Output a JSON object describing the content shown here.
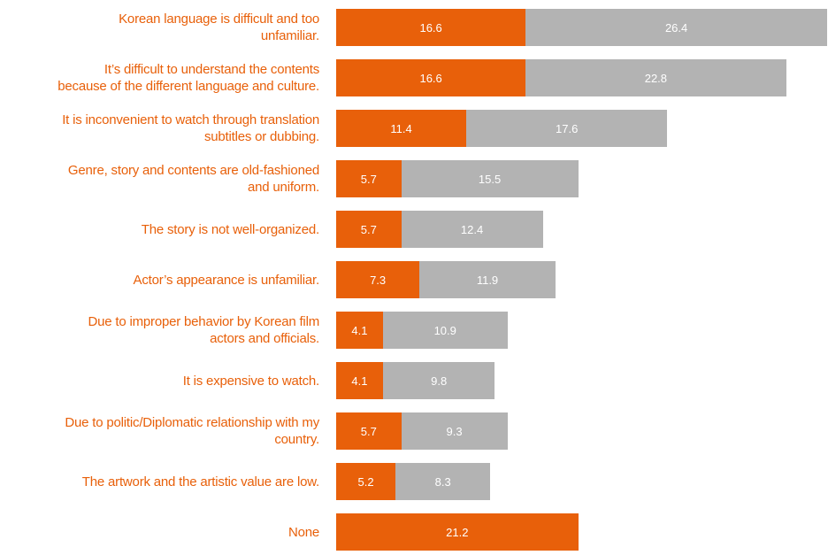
{
  "chart_data": {
    "type": "stacked_barh",
    "categories": [
      "Korean language is difficult and too\nunfamiliar.",
      "It’s difficult to understand the contents\nbecause of the different language and culture.",
      "It is inconvenient to watch through translation\nsubtitles or dubbing.",
      "Genre, story and contents are old-fashioned\nand uniform.",
      "The story is not well-organized.",
      "Actor’s appearance is unfamiliar.",
      "Due to improper behavior by Korean film\nactors and officials.",
      "It is expensive to watch.",
      "Due to politic/Diplomatic relationship with my\ncountry.",
      "The artwork and the artistic value are low.",
      "None"
    ],
    "label_color": "#e8600a",
    "series": [
      {
        "color": "#e8600a",
        "values": [
          16.6,
          16.6,
          11.4,
          5.7,
          5.7,
          7.3,
          4.1,
          4.1,
          5.7,
          5.2,
          21.2
        ]
      },
      {
        "color": "#b3b3b3",
        "values": [
          26.4,
          22.8,
          17.6,
          15.5,
          12.4,
          11.9,
          10.9,
          9.8,
          9.3,
          8.3,
          null
        ]
      }
    ]
  }
}
